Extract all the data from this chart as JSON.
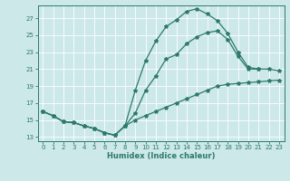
{
  "xlabel": "Humidex (Indice chaleur)",
  "bg_color": "#cce8e8",
  "grid_color": "#b0d8d8",
  "line_color": "#2d7a6a",
  "ylim": [
    12.5,
    28.5
  ],
  "xlim": [
    -0.5,
    23.5
  ],
  "yticks": [
    13,
    15,
    17,
    19,
    21,
    23,
    25,
    27
  ],
  "xticks": [
    0,
    1,
    2,
    3,
    4,
    5,
    6,
    7,
    8,
    9,
    10,
    11,
    12,
    13,
    14,
    15,
    16,
    17,
    18,
    19,
    20,
    21,
    22,
    23
  ],
  "curves": [
    {
      "x": [
        0,
        1,
        2,
        3,
        4,
        5,
        6,
        7,
        8,
        9,
        10,
        11,
        12,
        13,
        14,
        15,
        16,
        17,
        18,
        19,
        20,
        21
      ],
      "y": [
        16.0,
        15.5,
        14.8,
        14.7,
        14.3,
        14.0,
        13.5,
        13.2,
        14.3,
        18.5,
        22.0,
        24.3,
        26.0,
        26.8,
        27.8,
        28.1,
        27.5,
        26.7,
        25.2,
        23.0,
        21.2,
        21.0
      ]
    },
    {
      "x": [
        0,
        1,
        2,
        3,
        4,
        5,
        6,
        7,
        8,
        9,
        10,
        11,
        12,
        13,
        14,
        15,
        16,
        17,
        18,
        19,
        20,
        21,
        22,
        23
      ],
      "y": [
        16.0,
        15.5,
        14.8,
        14.7,
        14.3,
        14.0,
        13.5,
        13.2,
        14.3,
        15.0,
        15.5,
        16.0,
        16.5,
        17.0,
        17.5,
        18.0,
        18.5,
        19.0,
        19.2,
        19.3,
        19.4,
        19.5,
        19.6,
        19.7
      ]
    },
    {
      "x": [
        0,
        1,
        2,
        3,
        4,
        5,
        6,
        7,
        8,
        9,
        10,
        11,
        12,
        13,
        14,
        15,
        16,
        17,
        18,
        19,
        20,
        21,
        22,
        23
      ],
      "y": [
        16.0,
        15.5,
        14.8,
        14.7,
        14.3,
        14.0,
        13.5,
        13.2,
        14.3,
        15.8,
        18.5,
        20.2,
        22.2,
        22.7,
        24.0,
        24.8,
        25.3,
        25.5,
        24.5,
        22.5,
        21.0,
        21.0,
        21.0,
        20.8
      ]
    }
  ]
}
